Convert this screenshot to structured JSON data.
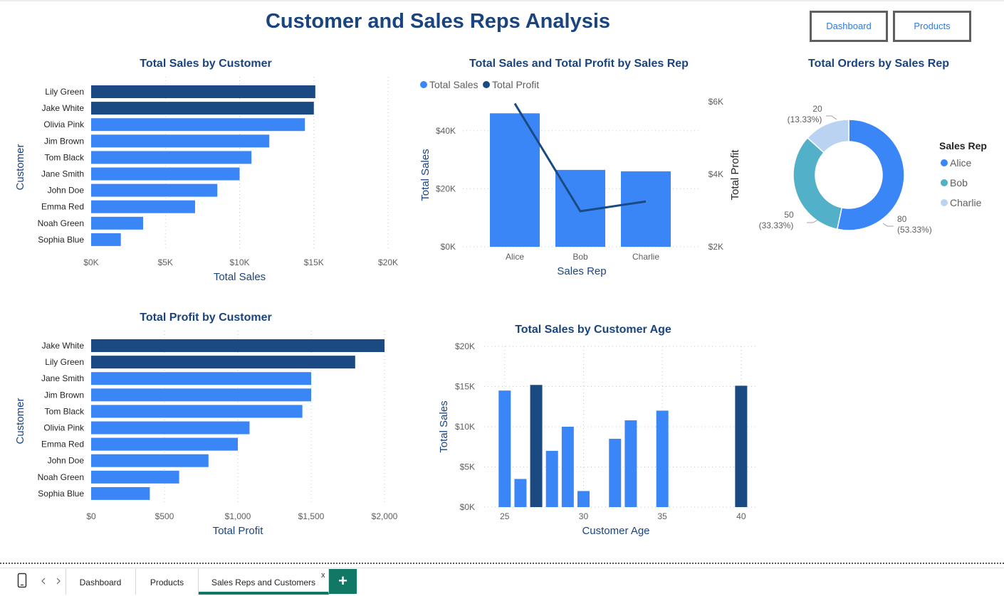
{
  "page": {
    "title": "Customer and Sales Reps Analysis"
  },
  "buttons": {
    "dashboard": "Dashboard",
    "products": "Products"
  },
  "tabs": {
    "items": [
      {
        "label": "Dashboard"
      },
      {
        "label": "Products"
      },
      {
        "label": "Sales Reps and Customers"
      }
    ],
    "active_index": 2,
    "close_label": "x",
    "add_label": "+",
    "icons": [
      "mobile-layout-icon",
      "nav-prev-icon",
      "nav-next-icon"
    ]
  },
  "colors": {
    "primary_bar": "#3a86f7",
    "highlight_bar": "#1b4a82",
    "title": "#1a4480",
    "donut_alice": "#3a86f7",
    "donut_bob": "#53b0c9",
    "donut_charlie": "#bad3f2",
    "tab_accent": "#117865"
  },
  "chart_data": [
    {
      "id": "sales_by_customer",
      "type": "bar",
      "orientation": "horizontal",
      "title": "Total Sales by Customer",
      "xlabel": "Total Sales",
      "ylabel": "Customer",
      "categories": [
        "Lily Green",
        "Jake White",
        "Olivia Pink",
        "Jim Brown",
        "Tom Black",
        "Jane Smith",
        "John Doe",
        "Emma Red",
        "Noah Green",
        "Sophia Blue"
      ],
      "values": [
        15100,
        15000,
        14400,
        12000,
        10800,
        10000,
        8500,
        7000,
        3500,
        2000
      ],
      "highlight": [
        "Lily Green",
        "Jake White"
      ],
      "xlim": [
        0,
        20000
      ],
      "ticks": [
        0,
        5000,
        10000,
        15000,
        20000
      ],
      "tick_labels": [
        "$0K",
        "$5K",
        "$10K",
        "$15K",
        "$20K"
      ],
      "grid": true
    },
    {
      "id": "sales_profit_by_rep",
      "type": "bar",
      "combo": "bar+line",
      "title": "Total Sales and Total Profit by Sales Rep",
      "xlabel": "Sales Rep",
      "ylabel": "Total Sales",
      "ylabel_right": "Total Profit",
      "categories": [
        "Alice",
        "Bob",
        "Charlie"
      ],
      "series": [
        {
          "name": "Total Sales",
          "type": "bar",
          "axis": "left",
          "values": [
            46000,
            26500,
            26000
          ]
        },
        {
          "name": "Total Profit",
          "type": "line",
          "axis": "right",
          "values": [
            5950,
            2980,
            3250
          ]
        }
      ],
      "ylim": [
        0,
        50000
      ],
      "y_ticks": [
        0,
        20000,
        40000
      ],
      "y_tick_labels": [
        "$0K",
        "$20K",
        "$40K"
      ],
      "ylim_right": [
        2000,
        6000
      ],
      "y_ticks_right": [
        2000,
        4000,
        6000
      ],
      "y_tick_labels_right": [
        "$2K",
        "$4K",
        "$6K"
      ],
      "legend": "top-left",
      "grid": true
    },
    {
      "id": "orders_by_rep",
      "type": "pie",
      "donut": true,
      "title": "Total Orders by Sales Rep",
      "legend_title": "Sales Rep",
      "legend": "right",
      "categories": [
        "Alice",
        "Bob",
        "Charlie"
      ],
      "values": [
        80,
        50,
        20
      ],
      "data_labels": [
        {
          "value": "80",
          "pct": "(53.33%)"
        },
        {
          "value": "50",
          "pct": "(33.33%)"
        },
        {
          "value": "20",
          "pct": "(13.33%)"
        }
      ]
    },
    {
      "id": "profit_by_customer",
      "type": "bar",
      "orientation": "horizontal",
      "title": "Total Profit by Customer",
      "xlabel": "Total Profit",
      "ylabel": "Customer",
      "categories": [
        "Jake White",
        "Lily Green",
        "Jane Smith",
        "Jim Brown",
        "Tom Black",
        "Olivia Pink",
        "Emma Red",
        "John Doe",
        "Noah Green",
        "Sophia Blue"
      ],
      "values": [
        2000,
        1800,
        1500,
        1500,
        1440,
        1080,
        1000,
        800,
        600,
        400
      ],
      "highlight": [
        "Jake White",
        "Lily Green"
      ],
      "xlim": [
        0,
        2000
      ],
      "ticks": [
        0,
        500,
        1000,
        1500,
        2000
      ],
      "tick_labels": [
        "$0",
        "$500",
        "$1,000",
        "$1,500",
        "$2,000"
      ],
      "grid": true
    },
    {
      "id": "sales_by_age",
      "type": "bar",
      "title": "Total Sales by Customer Age",
      "xlabel": "Customer Age",
      "ylabel": "Total Sales",
      "x": [
        25,
        26,
        27,
        28,
        29,
        30,
        32,
        33,
        35,
        40
      ],
      "values": [
        14500,
        3500,
        15200,
        7000,
        10000,
        2000,
        8500,
        10800,
        12000,
        15100
      ],
      "highlight_x": [
        27,
        40
      ],
      "xlim": [
        23.7,
        41
      ],
      "x_ticks": [
        25,
        30,
        35,
        40
      ],
      "x_tick_labels": [
        "25",
        "30",
        "35",
        "40"
      ],
      "ylim": [
        0,
        20000
      ],
      "y_ticks": [
        0,
        5000,
        10000,
        15000,
        20000
      ],
      "y_tick_labels": [
        "$0K",
        "$5K",
        "$10K",
        "$15K",
        "$20K"
      ],
      "grid": true
    }
  ]
}
